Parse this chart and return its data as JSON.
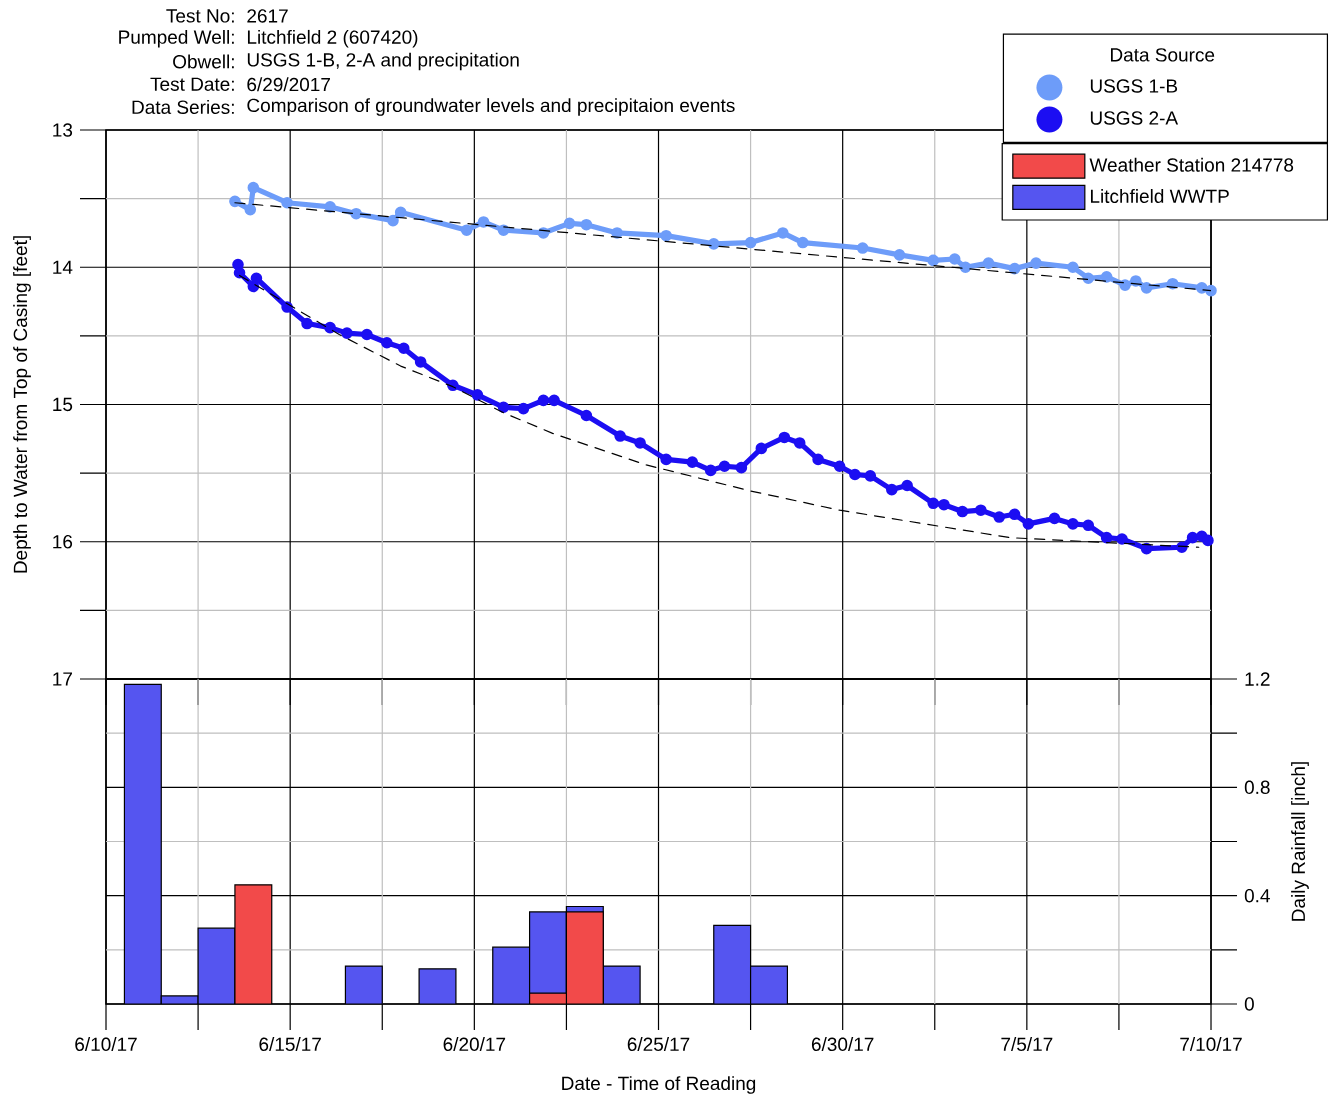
{
  "chart_data": [
    {
      "type": "line",
      "annotations": [
        "Test No:",
        "2617",
        "Pumped Well:",
        "Litchfield 2 (607420)",
        "Obwell:",
        "USGS 1-B, 2-A and precipitation",
        "Test Date:",
        "6/29/2017",
        "Data Series:",
        "Comparison of groundwater levels and precipitaion events"
      ],
      "ylabel": "Depth to Water from Top of Casing [feet]",
      "legend_title": "Data Source",
      "legend": "top right",
      "grid": true,
      "tick_labels": "y",
      "xlim": [
        "2017-06-10",
        "2017-07-10"
      ],
      "xticks": [
        "2017-06-10",
        {
          "value": "2017-06-12T12:00",
          "label": null
        },
        "2017-06-15",
        {
          "value": "2017-06-17T12:00",
          "label": null
        },
        "2017-06-20",
        {
          "value": "2017-06-22T12:00",
          "label": null
        },
        "2017-06-25",
        {
          "value": "2017-06-27T12:00",
          "label": null
        },
        "2017-06-30",
        {
          "value": "2017-07-02T12:00",
          "label": null
        },
        "2017-07-05",
        {
          "value": "2017-07-07T12:00",
          "label": null
        },
        "2017-07-10"
      ],
      "ylim": [
        17,
        13
      ],
      "yticks": [
        13,
        {
          "value": 13.5,
          "label": null
        },
        14,
        {
          "value": 14.5,
          "label": null
        },
        15,
        {
          "value": 15.5,
          "label": null
        },
        16,
        {
          "value": 16.5,
          "label": null
        },
        17
      ],
      "series": [
        {
          "name": "USGS 1-B",
          "color": "#6d9cf9",
          "marker": "circle",
          "x": [
            "2017-06-13T12:00",
            "2017-06-13T22:00",
            "2017-06-14T00:00",
            "2017-06-14T22:00",
            "2017-06-16T02:00",
            "2017-06-16T19:00",
            "2017-06-17T19:00",
            "2017-06-18T00:00",
            "2017-06-19T19:00",
            "2017-06-20T06:00",
            "2017-06-20T19:00",
            "2017-06-21T21:00",
            "2017-06-22T14:00",
            "2017-06-23T01:00",
            "2017-06-23T21:00",
            "2017-06-25T05:00",
            "2017-06-26T12:00",
            "2017-06-27T12:00",
            "2017-06-28T09:00",
            "2017-06-28T22:00",
            "2017-06-30T13:00",
            "2017-07-01T13:00",
            "2017-07-02T11:00",
            "2017-07-03T01:00",
            "2017-07-03T08:00",
            "2017-07-03T23:00",
            "2017-07-04T16:00",
            "2017-07-05T06:00",
            "2017-07-06T06:00",
            "2017-07-06T16:00",
            "2017-07-07T04:00",
            "2017-07-07T16:00",
            "2017-07-07T23:00",
            "2017-07-08T06:00",
            "2017-07-08T23:00",
            "2017-07-09T18:00",
            "2017-07-10T00:00"
          ],
          "values": [
            13.52,
            13.58,
            13.42,
            13.53,
            13.56,
            13.61,
            13.66,
            13.6,
            13.73,
            13.67,
            13.73,
            13.75,
            13.68,
            13.69,
            13.75,
            13.77,
            13.83,
            13.82,
            13.75,
            13.82,
            13.86,
            13.91,
            13.95,
            13.94,
            14.0,
            13.97,
            14.01,
            13.97,
            14.0,
            14.08,
            14.07,
            14.13,
            14.1,
            14.15,
            14.12,
            14.15,
            14.17
          ]
        },
        {
          "name": "USGS 2-A",
          "color": "#1c0ef2",
          "marker": "circle",
          "x": [
            "2017-06-13T14:00",
            "2017-06-13T15:00",
            "2017-06-14T00:00",
            "2017-06-14T02:00",
            "2017-06-14T22:00",
            "2017-06-15T11:00",
            "2017-06-16T02:00",
            "2017-06-16T13:00",
            "2017-06-17T02:00",
            "2017-06-17T15:00",
            "2017-06-18T02:00",
            "2017-06-18T13:00",
            "2017-06-19T10:00",
            "2017-06-20T02:00",
            "2017-06-20T19:00",
            "2017-06-21T08:00",
            "2017-06-21T21:00",
            "2017-06-22T04:00",
            "2017-06-23T01:00",
            "2017-06-23T23:00",
            "2017-06-24T12:00",
            "2017-06-25T05:00",
            "2017-06-25T22:00",
            "2017-06-26T10:00",
            "2017-06-26T19:00",
            "2017-06-27T06:00",
            "2017-06-27T19:00",
            "2017-06-28T10:00",
            "2017-06-28T20:00",
            "2017-06-29T08:00",
            "2017-06-29T22:00",
            "2017-06-30T08:00",
            "2017-06-30T18:00",
            "2017-07-01T08:00",
            "2017-07-01T18:00",
            "2017-07-02T11:00",
            "2017-07-02T18:00",
            "2017-07-03T06:00",
            "2017-07-03T18:00",
            "2017-07-04T06:00",
            "2017-07-04T16:00",
            "2017-07-05T01:00",
            "2017-07-05T18:00",
            "2017-07-06T06:00",
            "2017-07-06T16:00",
            "2017-07-07T04:00",
            "2017-07-07T14:00",
            "2017-07-08T06:00",
            "2017-07-09T05:00",
            "2017-07-09T12:00",
            "2017-07-09T18:00",
            "2017-07-09T22:00"
          ],
          "values": [
            13.98,
            14.04,
            14.14,
            14.08,
            14.29,
            14.41,
            14.44,
            14.48,
            14.49,
            14.55,
            14.59,
            14.69,
            14.86,
            14.93,
            15.02,
            15.03,
            14.97,
            14.97,
            15.08,
            15.23,
            15.28,
            15.4,
            15.42,
            15.48,
            15.45,
            15.46,
            15.32,
            15.24,
            15.28,
            15.4,
            15.45,
            15.51,
            15.52,
            15.62,
            15.59,
            15.72,
            15.73,
            15.78,
            15.77,
            15.82,
            15.8,
            15.87,
            15.83,
            15.87,
            15.88,
            15.97,
            15.98,
            16.05,
            16.04,
            15.97,
            15.96,
            15.99
          ]
        },
        {
          "type": "line",
          "color": "#000000",
          "line_style": "dashed",
          "x": [
            "2017-06-13T12:00",
            "2017-07-10T00:00"
          ],
          "values": [
            13.53,
            14.17
          ]
        },
        {
          "type": "line",
          "color": "#000000",
          "line_style": "dashed",
          "x": [
            "2017-06-13T15:00",
            "2017-06-16T08:00",
            "2017-06-18T00:00",
            "2017-06-19T10:00",
            "2017-06-20T19:00",
            "2017-06-22T03:00",
            "2017-06-24T16:00",
            "2017-06-27T12:00",
            "2017-06-29T22:00",
            "2017-07-04T13:00",
            "2017-07-09T16:00"
          ],
          "values": [
            14.06,
            14.49,
            14.72,
            14.87,
            15.06,
            15.21,
            15.44,
            15.63,
            15.77,
            15.97,
            16.04
          ]
        }
      ]
    },
    {
      "type": "bar",
      "xlabel": "Date - Time of Reading",
      "y2label": "Daily Rainfall [inch]",
      "legend": "top right",
      "grid": true,
      "xlim": [
        "2017-06-10",
        "2017-07-10"
      ],
      "xticks": [
        {
          "value": "2017-06-10",
          "label": "6/10/17"
        },
        {
          "value": "2017-06-12T12:00",
          "label": null
        },
        {
          "value": "2017-06-15",
          "label": "6/15/17"
        },
        {
          "value": "2017-06-17T12:00",
          "label": null
        },
        {
          "value": "2017-06-20",
          "label": "6/20/17"
        },
        {
          "value": "2017-06-22T12:00",
          "label": null
        },
        {
          "value": "2017-06-25",
          "label": "6/25/17"
        },
        {
          "value": "2017-06-27T12:00",
          "label": null
        },
        {
          "value": "2017-06-30",
          "label": "6/30/17"
        },
        {
          "value": "2017-07-02T12:00",
          "label": null
        },
        {
          "value": "2017-07-05",
          "label": "7/5/17"
        },
        {
          "value": "2017-07-07T12:00",
          "label": null
        },
        {
          "value": "2017-07-10",
          "label": "7/10/17"
        }
      ],
      "y2lim": [
        0,
        1.2
      ],
      "y2ticks": [
        0,
        {
          "value": 0.2,
          "label": null
        },
        0.4,
        {
          "value": 0.6,
          "label": null
        },
        0.8,
        {
          "value": 1.0,
          "label": null
        },
        1.2
      ],
      "series": [
        {
          "name": "Weather Station 214778",
          "color": "#f24a4a",
          "axis": "y2",
          "x": [
            "2017-06-14",
            "2017-06-22",
            "2017-06-23"
          ],
          "values": [
            0.44,
            0.04,
            0.34
          ]
        },
        {
          "name": "Litchfield WWTP",
          "color": "#5555f0",
          "axis": "y2",
          "x": [
            "2017-06-11",
            "2017-06-12",
            "2017-06-13",
            "2017-06-17",
            "2017-06-19",
            "2017-06-21",
            "2017-06-22",
            "2017-06-23",
            "2017-06-24",
            "2017-06-27",
            "2017-06-28"
          ],
          "values": [
            1.18,
            0.03,
            0.28,
            0.14,
            0.13,
            0.21,
            0.34,
            0.36,
            0.14,
            0.29,
            0.14
          ]
        }
      ]
    }
  ]
}
